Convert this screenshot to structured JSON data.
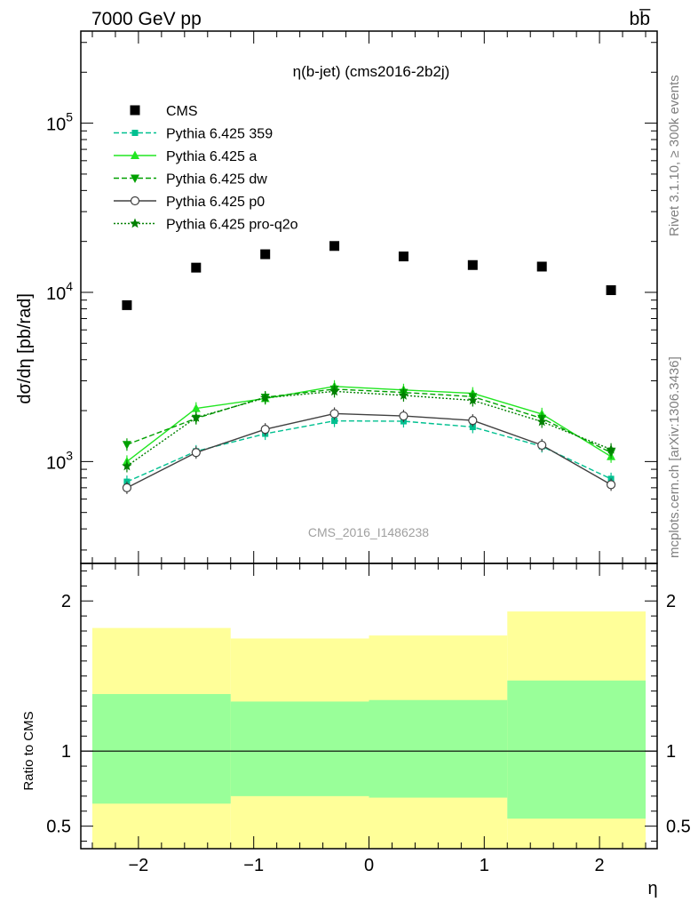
{
  "header": {
    "energy_label": "7000 GeV pp",
    "process_label": "bb̅"
  },
  "side_labels": {
    "rivet": "Rivet 3.1.10, ≥ 300k events",
    "mcplots": "mcplots.cern.ch [arXiv:1306.3436]"
  },
  "chart_data": [
    {
      "type": "scatter",
      "title": "η(b-jet) (cms2016-2b2j)",
      "watermark": "CMS_2016_I1486238",
      "ylabel": "dσ/dη [pb/rad]",
      "yscale": "log",
      "ylim": [
        250,
        350000
      ],
      "xlim": [
        -2.5,
        2.5
      ],
      "yticks": [
        {
          "value": 1000,
          "base": "10",
          "exp": "3"
        },
        {
          "value": 10000,
          "base": "10",
          "exp": "4"
        },
        {
          "value": 100000,
          "base": "10",
          "exp": "5"
        }
      ],
      "legend_position": "top-left",
      "x": [
        -2.1,
        -1.5,
        -0.9,
        -0.3,
        0.3,
        0.9,
        1.5,
        2.1
      ],
      "series": [
        {
          "name": "CMS",
          "color": "#000000",
          "marker": "square",
          "line": "none",
          "values": [
            8400,
            14000,
            16800,
            18800,
            16300,
            14500,
            14200,
            10300
          ]
        },
        {
          "name": "Pythia 6.425 359",
          "color": "#00c090",
          "marker": "small-square",
          "line": "dashed",
          "values": [
            760,
            1150,
            1460,
            1740,
            1730,
            1600,
            1230,
            790
          ]
        },
        {
          "name": "Pythia 6.425 a",
          "color": "#22e622",
          "marker": "triangle-up",
          "line": "solid",
          "values": [
            1000,
            2060,
            2360,
            2780,
            2650,
            2530,
            1910,
            1070
          ]
        },
        {
          "name": "Pythia 6.425 dw",
          "color": "#00a000",
          "marker": "triangle-down",
          "line": "dashed",
          "values": [
            1260,
            1800,
            2400,
            2680,
            2560,
            2420,
            1800,
            1130
          ]
        },
        {
          "name": "Pythia 6.425 p0",
          "color": "#404040",
          "marker": "open-circle",
          "line": "solid",
          "values": [
            700,
            1130,
            1550,
            1920,
            1860,
            1750,
            1250,
            730
          ]
        },
        {
          "name": "Pythia 6.425 pro-q2o",
          "color": "#008000",
          "marker": "star",
          "line": "dotted",
          "values": [
            940,
            1820,
            2380,
            2600,
            2460,
            2300,
            1720,
            1180
          ]
        }
      ]
    },
    {
      "type": "area",
      "ylabel": "Ratio to CMS",
      "xlabel": "η",
      "xlim": [
        -2.5,
        2.5
      ],
      "ylim": [
        0.35,
        2.25
      ],
      "xticks": [
        "−2",
        "−1",
        "0",
        "1",
        "2"
      ],
      "xtick_values": [
        -2,
        -1,
        0,
        1,
        2
      ],
      "yticks": [
        "0.5",
        "1",
        "2"
      ],
      "ytick_values": [
        0.5,
        1,
        2
      ],
      "reference_line": 1,
      "band_colors": {
        "outer": "#ffff99",
        "inner": "#99ff99"
      },
      "bands": [
        {
          "x0": -2.4,
          "x1": -1.2,
          "outer": [
            0.35,
            1.82
          ],
          "inner": [
            0.65,
            1.38
          ]
        },
        {
          "x0": -1.2,
          "x1": 0.0,
          "outer": [
            0.35,
            1.75
          ],
          "inner": [
            0.7,
            1.33
          ]
        },
        {
          "x0": 0.0,
          "x1": 1.2,
          "outer": [
            0.35,
            1.77
          ],
          "inner": [
            0.69,
            1.34
          ]
        },
        {
          "x0": 1.2,
          "x1": 2.4,
          "outer": [
            0.35,
            1.93
          ],
          "inner": [
            0.55,
            1.47
          ]
        }
      ]
    }
  ]
}
